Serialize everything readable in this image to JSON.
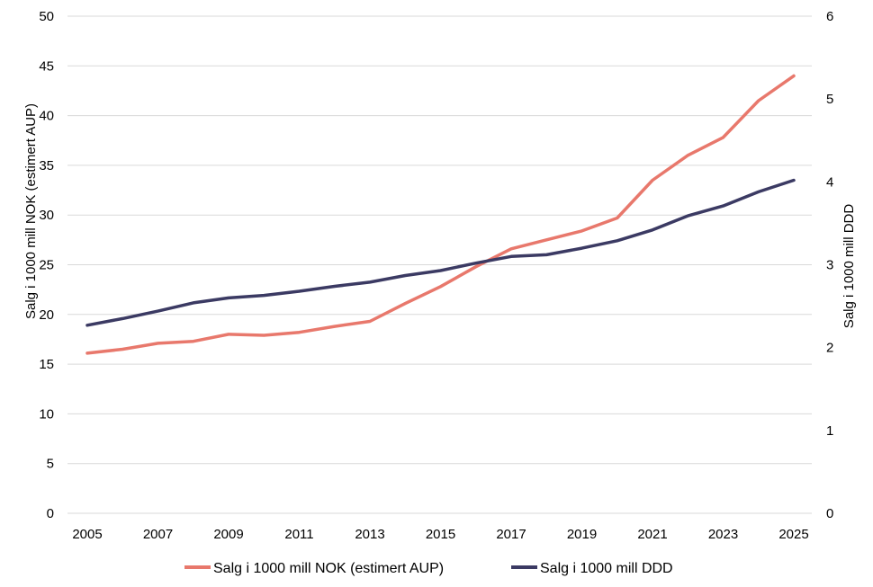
{
  "chart_data": {
    "type": "line",
    "x": [
      2005,
      2006,
      2007,
      2008,
      2009,
      2010,
      2011,
      2012,
      2013,
      2014,
      2015,
      2016,
      2017,
      2018,
      2019,
      2020,
      2021,
      2022,
      2023,
      2024,
      2025
    ],
    "x_tick_labels": [
      "2005",
      "2007",
      "2009",
      "2011",
      "2013",
      "2015",
      "2017",
      "2019",
      "2021",
      "2023",
      "2025"
    ],
    "y_left": {
      "label": "Salg i 1000 mill NOK (estimert AUP)",
      "range": [
        0,
        50
      ],
      "ticks": [
        "0",
        "5",
        "10",
        "15",
        "20",
        "25",
        "30",
        "35",
        "40",
        "45",
        "50"
      ]
    },
    "y_right": {
      "label": "Salg i 1000 mill DDD",
      "range": [
        0,
        6
      ],
      "ticks": [
        "0",
        "1",
        "2",
        "3",
        "4",
        "5",
        "6"
      ]
    },
    "grid": true,
    "legend_position": "bottom",
    "series": [
      {
        "name": "Salg i 1000 mill NOK (estimert AUP)",
        "axis": "left",
        "color": "#e8786c",
        "values": [
          16.1,
          16.5,
          17.1,
          17.3,
          18.0,
          17.9,
          18.2,
          18.8,
          19.3,
          21.1,
          22.8,
          24.8,
          26.6,
          27.5,
          28.4,
          29.7,
          33.5,
          36.0,
          37.8,
          41.5,
          44.0
        ]
      },
      {
        "name": "Salg i 1000 mill DDD",
        "axis": "right",
        "color": "#3b3a63",
        "values": [
          2.27,
          2.35,
          2.44,
          2.54,
          2.6,
          2.63,
          2.68,
          2.74,
          2.79,
          2.87,
          2.93,
          3.02,
          3.1,
          3.12,
          3.2,
          3.29,
          3.42,
          3.59,
          3.71,
          3.88,
          4.02
        ]
      }
    ]
  }
}
